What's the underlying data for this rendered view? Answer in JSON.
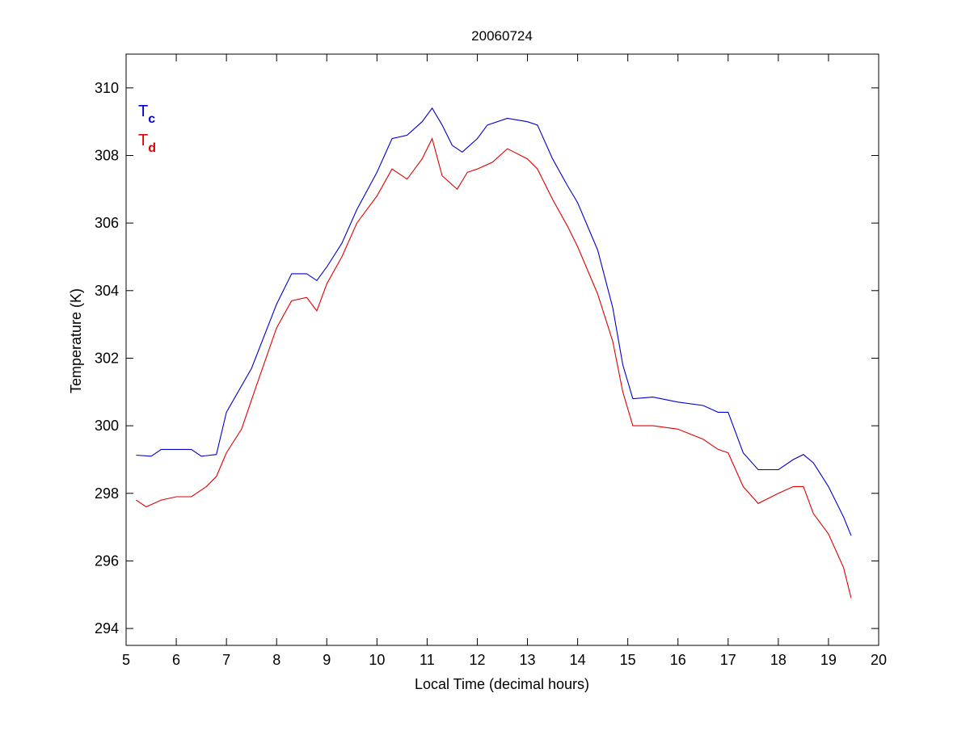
{
  "chart_data": {
    "type": "line",
    "title": "20060724",
    "xlabel": "Local Time (decimal hours)",
    "ylabel": "Temperature (K)",
    "xlim": [
      5,
      20
    ],
    "ylim": [
      293.5,
      311
    ],
    "xticks": [
      5,
      6,
      7,
      8,
      9,
      10,
      11,
      12,
      13,
      14,
      15,
      16,
      17,
      18,
      19,
      20
    ],
    "yticks": [
      294,
      296,
      298,
      300,
      302,
      304,
      306,
      308,
      310
    ],
    "grid": false,
    "legend": {
      "placement": "top-left",
      "entries": [
        {
          "main": "T",
          "sub": "c",
          "color": "#0000cc"
        },
        {
          "main": "T",
          "sub": "d",
          "color": "#dd0000"
        }
      ]
    },
    "series": [
      {
        "name": "Tc",
        "color": "#0000cc",
        "x": [
          5.2,
          5.5,
          5.7,
          6.3,
          6.5,
          6.8,
          7.0,
          7.5,
          8.0,
          8.3,
          8.6,
          8.8,
          9.0,
          9.3,
          9.6,
          10.0,
          10.3,
          10.6,
          10.9,
          11.1,
          11.3,
          11.5,
          11.7,
          12.0,
          12.2,
          12.6,
          13.0,
          13.2,
          13.5,
          13.8,
          14.0,
          14.4,
          14.7,
          14.9,
          15.1,
          15.5,
          16.0,
          16.5,
          16.8,
          17.0,
          17.3,
          17.6,
          18.0,
          18.3,
          18.5,
          18.7,
          19.0,
          19.3,
          19.45
        ],
        "y": [
          299.13,
          299.1,
          299.3,
          299.3,
          299.1,
          299.15,
          300.4,
          301.7,
          303.6,
          304.5,
          304.5,
          304.3,
          304.7,
          305.4,
          306.4,
          307.5,
          308.5,
          308.6,
          309.0,
          309.4,
          308.9,
          308.3,
          308.1,
          308.5,
          308.9,
          309.1,
          309.0,
          308.9,
          307.9,
          307.1,
          306.6,
          305.2,
          303.5,
          301.8,
          300.8,
          300.85,
          300.7,
          300.6,
          300.4,
          300.4,
          299.2,
          298.7,
          298.7,
          299.0,
          299.15,
          298.9,
          298.2,
          297.3,
          296.75
        ]
      },
      {
        "name": "Td",
        "color": "#dd0000",
        "x": [
          5.2,
          5.4,
          5.7,
          6.0,
          6.3,
          6.6,
          6.8,
          7.0,
          7.3,
          7.6,
          8.0,
          8.3,
          8.6,
          8.8,
          9.0,
          9.3,
          9.6,
          10.0,
          10.3,
          10.6,
          10.9,
          11.1,
          11.3,
          11.6,
          11.8,
          12.0,
          12.3,
          12.6,
          13.0,
          13.2,
          13.5,
          13.8,
          14.0,
          14.4,
          14.7,
          14.9,
          15.1,
          15.5,
          16.0,
          16.5,
          16.8,
          17.0,
          17.3,
          17.6,
          18.0,
          18.3,
          18.5,
          18.7,
          19.0,
          19.3,
          19.45
        ],
        "y": [
          297.8,
          297.6,
          297.8,
          297.9,
          297.9,
          298.2,
          298.5,
          299.2,
          299.9,
          301.2,
          302.9,
          303.7,
          303.8,
          303.4,
          304.2,
          305.0,
          306.0,
          306.8,
          307.6,
          307.3,
          307.9,
          308.5,
          307.4,
          307.0,
          307.5,
          307.6,
          307.8,
          308.2,
          307.9,
          307.6,
          306.7,
          305.9,
          305.3,
          303.9,
          302.5,
          301.0,
          300.0,
          300.0,
          299.9,
          299.6,
          299.3,
          299.2,
          298.2,
          297.7,
          298.0,
          298.2,
          298.2,
          297.4,
          296.8,
          295.8,
          294.9
        ]
      }
    ]
  }
}
